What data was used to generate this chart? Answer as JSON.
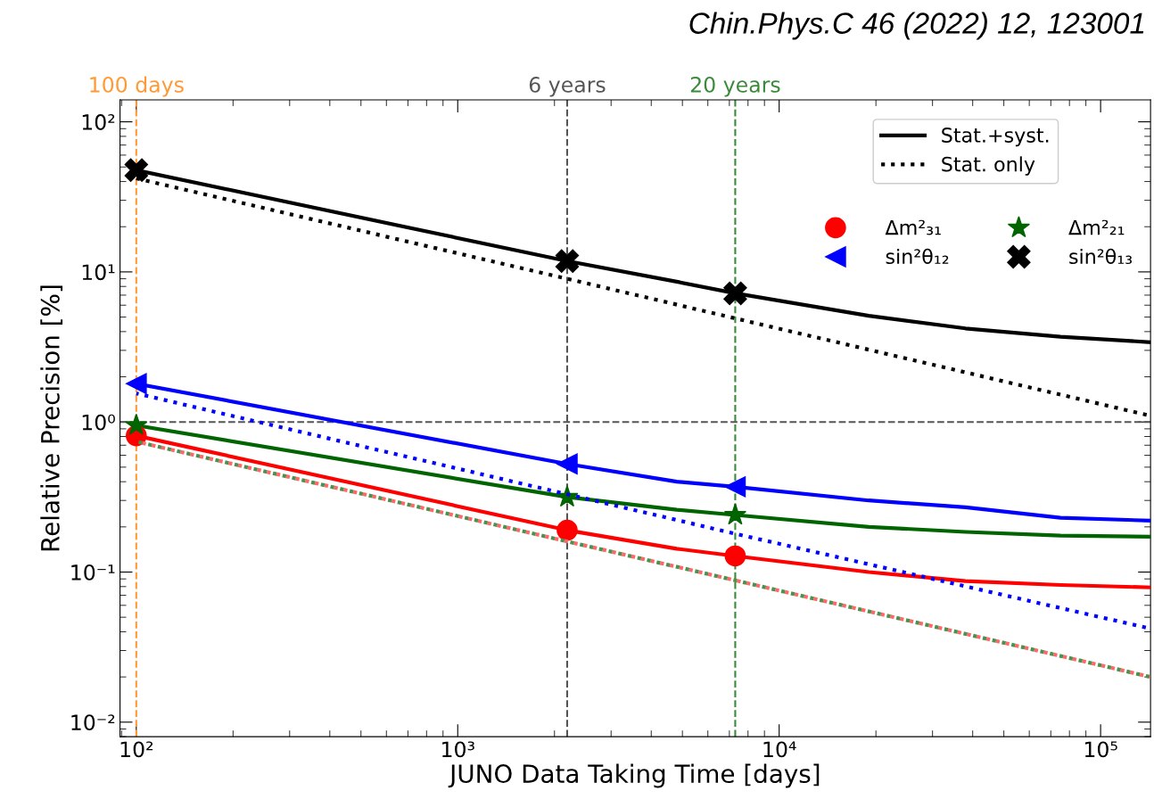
{
  "chart_data": {
    "type": "line",
    "title": "Chin.Phys.C 46 (2022) 12, 123001",
    "xlabel": "JUNO Data Taking Time [days]",
    "ylabel": "Relative Precision [%]",
    "log": "xy",
    "xlim": [
      89,
      143000
    ],
    "ylim": [
      0.008,
      140
    ],
    "xticks": [
      {
        "value": 100,
        "label": "10²"
      },
      {
        "value": 1000,
        "label": "10³"
      },
      {
        "value": 10000,
        "label": "10⁴"
      },
      {
        "value": 100000,
        "label": "10⁵"
      }
    ],
    "yticks": [
      {
        "value": 0.01,
        "label": "10⁻²"
      },
      {
        "value": 0.1,
        "label": "10⁻¹"
      },
      {
        "value": 1,
        "label": "10⁰"
      },
      {
        "value": 10,
        "label": "10¹"
      },
      {
        "value": 100,
        "label": "10²"
      }
    ],
    "grid": false,
    "legend": "top right",
    "ref_lines": [
      {
        "axis": "x",
        "value": 100,
        "label": "100 days",
        "color": "#ff9933",
        "line_style": "dashed"
      },
      {
        "axis": "x",
        "value": 2190,
        "label": "6 years",
        "color": "#555555",
        "line_style": "dashed"
      },
      {
        "axis": "x",
        "value": 7300,
        "label": "20 years",
        "color": "#3a8a3a",
        "line_style": "dashed"
      },
      {
        "axis": "y",
        "value": 1,
        "color": "#555555",
        "line_style": "dashed"
      }
    ],
    "series": [
      {
        "name": "Stat.+syst.",
        "color": "#000000",
        "line_style": "solid",
        "x": [
          100,
          2190,
          4800,
          7300,
          19000,
          38000,
          75000,
          143000
        ],
        "values": [
          47.6,
          11.8,
          8.6,
          7.2,
          5.1,
          4.2,
          3.7,
          3.4
        ]
      },
      {
        "name": "Stat. only",
        "color": "#000000",
        "line_style": "dotted",
        "x": [
          100,
          2190,
          7300,
          143000
        ],
        "values": [
          42,
          9.0,
          4.9,
          1.1
        ]
      },
      {
        "color": "#ff0000",
        "line_style": "solid",
        "x": [
          100,
          2190,
          4800,
          7300,
          19000,
          38000,
          75000,
          143000
        ],
        "values": [
          0.81,
          0.19,
          0.143,
          0.128,
          0.1,
          0.087,
          0.082,
          0.079
        ]
      },
      {
        "color": "#ff6666",
        "line_style": "dotted",
        "x": [
          100,
          2190,
          7300,
          143000
        ],
        "values": [
          0.74,
          0.16,
          0.088,
          0.02
        ]
      },
      {
        "color": "#006400",
        "line_style": "solid",
        "x": [
          100,
          2190,
          4800,
          7300,
          19000,
          38000,
          75000,
          143000
        ],
        "values": [
          0.95,
          0.316,
          0.26,
          0.24,
          0.2,
          0.185,
          0.175,
          0.172
        ]
      },
      {
        "color": "#4d8f4d",
        "line_style": "dotted",
        "x": [
          100,
          2190,
          7300,
          143000
        ],
        "values": [
          0.74,
          0.16,
          0.088,
          0.02
        ]
      },
      {
        "color": "#0000ff",
        "line_style": "solid",
        "x": [
          100,
          2190,
          4800,
          7300,
          19000,
          38000,
          75000,
          143000
        ],
        "values": [
          1.8,
          0.525,
          0.4,
          0.37,
          0.3,
          0.27,
          0.23,
          0.22
        ]
      },
      {
        "color": "#0000ff",
        "line_style": "dotted",
        "x": [
          100,
          2190,
          7300,
          143000
        ],
        "values": [
          1.55,
          0.33,
          0.18,
          0.042
        ]
      },
      {
        "name": "Δm²₃₁",
        "type": "scatter",
        "marker": "circle",
        "color": "#ff0000",
        "x": [
          100,
          2190,
          7300
        ],
        "values": [
          0.81,
          0.19,
          0.128
        ]
      },
      {
        "name": "Δm²₂₁",
        "type": "scatter",
        "marker": "star",
        "color": "#006400",
        "x": [
          100,
          2190,
          7300
        ],
        "values": [
          0.95,
          0.316,
          0.24
        ]
      },
      {
        "name": "sin²θ₁₂",
        "type": "scatter",
        "marker": "triangle",
        "color": "#0000ff",
        "x": [
          100,
          2190,
          7300
        ],
        "values": [
          1.8,
          0.525,
          0.37
        ]
      },
      {
        "name": "sin²θ₁₃",
        "type": "scatter",
        "marker": "cross",
        "color": "#000000",
        "x": [
          100,
          2190,
          7300
        ],
        "values": [
          47.6,
          11.8,
          7.2
        ]
      }
    ]
  }
}
